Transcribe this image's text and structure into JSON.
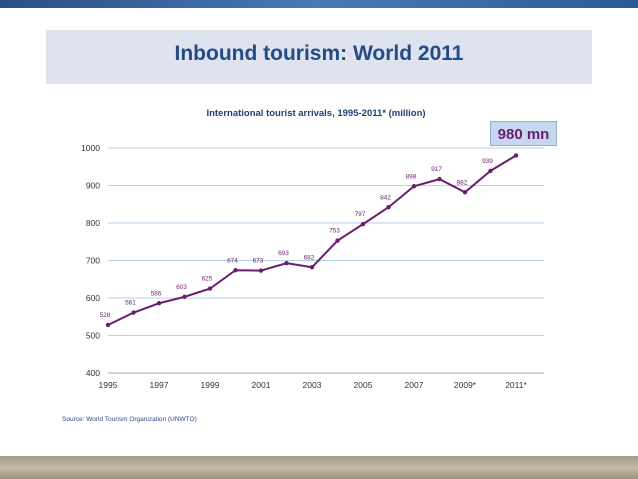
{
  "slide": {
    "title": "Inbound tourism: World 2011",
    "source": "Source: World Tourism Organization (UNWTO)",
    "callout": "980 mn"
  },
  "colors": {
    "series": "#6a1f6e",
    "title": "#244b86",
    "chart_title": "#1f3f77",
    "grid": "#9dc3e6",
    "callout_bg": "#c6d7ef"
  },
  "chart_data": {
    "type": "line",
    "title": "International tourist arrivals, 1995-2011* (million)",
    "x": [
      1995,
      1996,
      1997,
      1998,
      1999,
      2000,
      2001,
      2002,
      2003,
      2004,
      2005,
      2006,
      2007,
      2008,
      2009,
      2010,
      2011
    ],
    "series": [
      {
        "values": [
          528,
          561,
          586,
          603,
          625,
          674,
          673,
          693,
          682,
          753,
          797,
          842,
          898,
          917,
          882,
          939,
          980
        ]
      }
    ],
    "point_labels": [
      "528",
      "561",
      "586",
      "603",
      "625",
      "674",
      "673",
      "693",
      "682",
      "753",
      "797",
      "842",
      "898",
      "917",
      "882",
      "939",
      ""
    ],
    "xticks": [
      "1995",
      "1997",
      "1999",
      "2001",
      "2003",
      "2005",
      "2007",
      "2009*",
      "2011*"
    ],
    "yticks": [
      "400",
      "500",
      "600",
      "700",
      "800",
      "900",
      "1000"
    ],
    "ylim": [
      400,
      1000
    ],
    "grid": true
  }
}
